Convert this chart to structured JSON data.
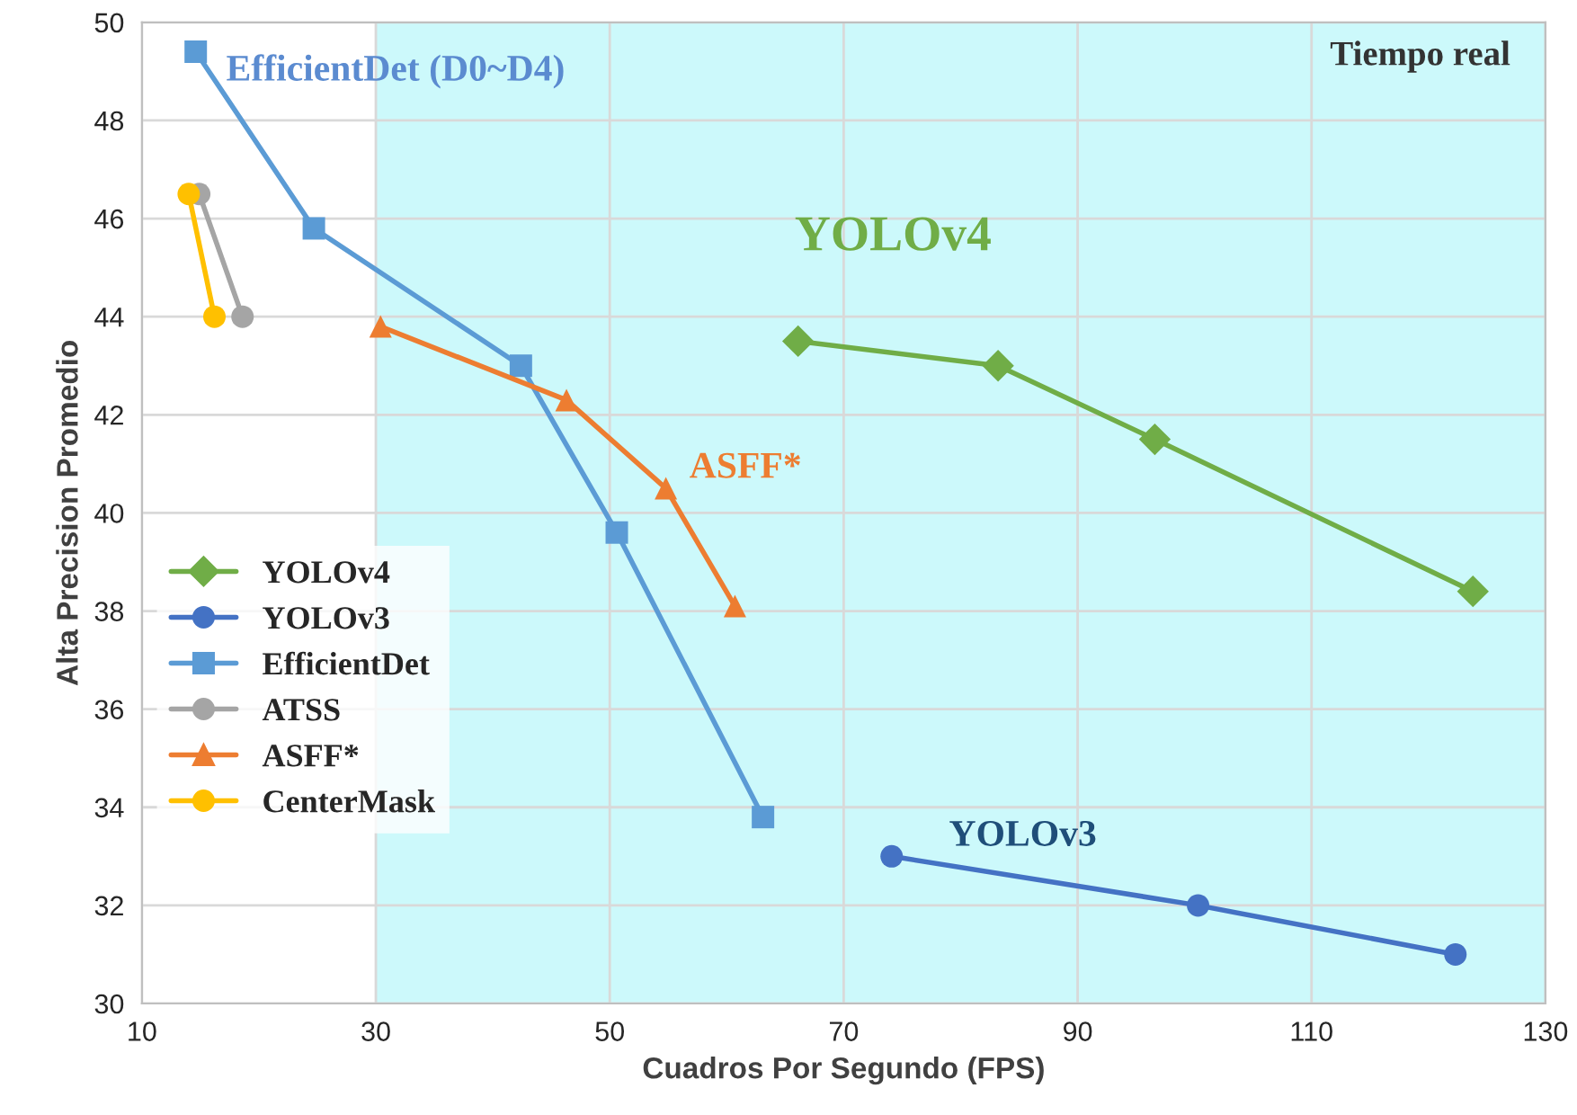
{
  "chart_data": {
    "type": "line",
    "xlabel": "Cuadros Por Segundo (FPS)",
    "ylabel": "Alta Precision Promedio",
    "xlim": [
      10,
      130
    ],
    "xticks": [
      10,
      30,
      50,
      70,
      90,
      110,
      130
    ],
    "ylim": [
      30,
      50
    ],
    "yticks": [
      30,
      32,
      34,
      36,
      38,
      40,
      42,
      44,
      46,
      48,
      50
    ],
    "grid": true,
    "legend": "center left",
    "bands": [
      {
        "axis": "x",
        "from": 30,
        "to": 130,
        "label": "Tiempo real",
        "color": "#ccf9fb"
      }
    ],
    "annotations": [
      "EfficientDet (D0~D4)",
      "YOLOv4",
      "ASFF*",
      "YOLOv3"
    ],
    "series": [
      {
        "name": "YOLOv4",
        "color": "#70ad47",
        "marker": "diamond",
        "x": [
          66.1,
          83.2,
          96.6,
          123.8
        ],
        "values": [
          43.5,
          43.0,
          41.5,
          38.4
        ]
      },
      {
        "name": "YOLOv3",
        "color": "#4472c4",
        "marker": "circle",
        "x": [
          74.1,
          100.3,
          122.3
        ],
        "values": [
          33.0,
          32.0,
          31.0
        ]
      },
      {
        "name": "EfficientDet",
        "color": "#5b9bd5",
        "marker": "square",
        "x": [
          14.6,
          24.7,
          42.4,
          50.6,
          63.1
        ],
        "values": [
          49.4,
          45.8,
          43.0,
          39.6,
          33.8
        ]
      },
      {
        "name": "ATSS",
        "color": "#a5a5a5",
        "marker": "circle",
        "x": [
          14.9,
          18.6
        ],
        "values": [
          46.5,
          44.0
        ]
      },
      {
        "name": "ASFF*",
        "color": "#ed7d31",
        "marker": "triangle",
        "x": [
          30.4,
          46.3,
          54.8,
          60.7
        ],
        "values": [
          43.8,
          42.3,
          40.5,
          38.1
        ]
      },
      {
        "name": "CenterMask",
        "color": "#ffc000",
        "marker": "circle",
        "x": [
          14.0,
          16.2
        ],
        "values": [
          46.5,
          44.0
        ]
      }
    ]
  }
}
